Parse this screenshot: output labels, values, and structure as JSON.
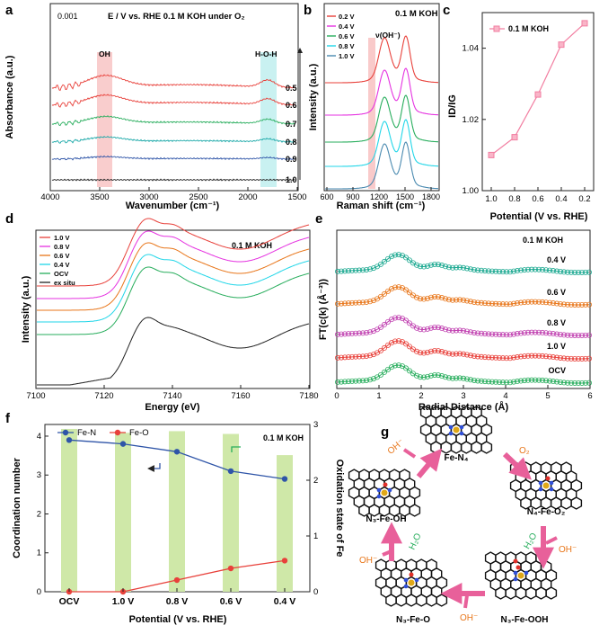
{
  "colors": {
    "red": "#e8403a",
    "magenta": "#e532e0",
    "orange": "#e8761a",
    "green": "#27ad5c",
    "blue": "#2f55a8",
    "teal": "#1aa8a8",
    "cyan": "#21d6e8",
    "pink": "#f27ea1",
    "black": "#222222",
    "lightgreen": "#cfe8a8"
  },
  "panel_a": {
    "label": "a",
    "note_left": "0.001",
    "note": "E / V vs. RHE  0.1 M KOH  under O₂",
    "xlabel": "Wavenumber (cm⁻¹)",
    "ylabel": "Absorbance (a.u.)",
    "band_oh": "OH",
    "band_hoh": "H-O-H",
    "xticks": [
      "4000",
      "3500",
      "3000",
      "2500",
      "2000",
      "1500"
    ],
    "potentials": [
      "0.5",
      "0.6",
      "0.7",
      "0.8",
      "0.9",
      "1.0"
    ]
  },
  "panel_b": {
    "label": "b",
    "note": "0.1 M KOH",
    "peak_label": "ν(OH⁻)",
    "xlabel": "Raman shift (cm⁻¹)",
    "ylabel": "Intensity (a.u.)",
    "xticks": [
      "600",
      "900",
      "1200",
      "1500",
      "1800"
    ],
    "legend": [
      "0.2 V",
      "0.4 V",
      "0.6 V",
      "0.8 V",
      "1.0 V"
    ]
  },
  "panel_c": {
    "label": "c",
    "legend": "0.1 M KOH",
    "ylabel": "ID/IG",
    "xlabel": "Potential (V vs. RHE)",
    "yticks": [
      "1.00",
      "1.02",
      "1.04"
    ],
    "xticks": [
      "1.0",
      "0.8",
      "0.6",
      "0.4",
      "0.2"
    ]
  },
  "panel_d": {
    "label": "d",
    "note": "0.1 M KOH",
    "xlabel": "Energy (eV)",
    "ylabel": "Intensity (a.u.)",
    "xticks": [
      "7100",
      "7120",
      "7140",
      "7160",
      "7180"
    ],
    "legend": [
      "1.0 V",
      "0.8 V",
      "0.6 V",
      "0.4 V",
      "OCV",
      "ex situ"
    ]
  },
  "panel_e": {
    "label": "e",
    "note": "0.1 M KOH",
    "xlabel": "Radial Distance (Å)",
    "ylabel": "FT(c(k) (Å⁻³))",
    "xticks": [
      "0",
      "1",
      "2",
      "3",
      "4",
      "5",
      "6"
    ],
    "curves": [
      "0.4 V",
      "0.6 V",
      "0.8 V",
      "1.0 V",
      "OCV"
    ]
  },
  "panel_f": {
    "label": "f",
    "note": "0.1 M KOH",
    "legend": [
      "Fe-N",
      "Fe-O"
    ],
    "ylabel": "Coordination number",
    "y2label": "Oxidation state of Fe",
    "xlabel": "Potential (V vs. RHE)",
    "yticks": [
      "0",
      "1",
      "2",
      "3",
      "4"
    ],
    "y2ticks": [
      "0",
      "1",
      "2",
      "3"
    ]
  },
  "panel_g": {
    "label": "g",
    "species": [
      "Fe-N₄",
      "N₄-Fe-O₂",
      "N₃-Fe-OOH",
      "N₃-Fe-O",
      "N₃-Fe-OH"
    ],
    "steps": [
      "O₂",
      "H₂O",
      "OH⁻",
      "OH⁻",
      "OH⁻",
      "H₂O",
      "OH⁻"
    ]
  },
  "chart_data": [
    {
      "panel": "a",
      "type": "line",
      "title": "E / V vs. RHE  0.1 M KOH  under O2",
      "xlabel": "Wavenumber (cm-1)",
      "ylabel": "Absorbance (a.u.)",
      "xlim": [
        4000,
        1500
      ],
      "series": [
        {
          "name": "0.5 V"
        },
        {
          "name": "0.6 V"
        },
        {
          "name": "0.7 V"
        },
        {
          "name": "0.8 V"
        },
        {
          "name": "0.9 V"
        },
        {
          "name": "1.0 V"
        }
      ],
      "annotations": [
        "OH band ~3400",
        "H-O-H band ~1650"
      ]
    },
    {
      "panel": "b",
      "type": "line",
      "xlabel": "Raman shift (cm-1)",
      "ylabel": "Intensity (a.u.)",
      "xlim": [
        600,
        1900
      ],
      "peaks_cm": [
        1350,
        1590
      ],
      "series": [
        {
          "name": "0.2 V"
        },
        {
          "name": "0.4 V"
        },
        {
          "name": "0.6 V"
        },
        {
          "name": "0.8 V"
        },
        {
          "name": "1.0 V"
        }
      ]
    },
    {
      "panel": "c",
      "type": "line",
      "xlabel": "Potential (V vs. RHE)",
      "ylabel": "ID/IG",
      "categories": [
        "1.0",
        "0.8",
        "0.6",
        "0.4",
        "0.2"
      ],
      "values": [
        1.01,
        1.015,
        1.027,
        1.041,
        1.047
      ],
      "ylim": [
        1.0,
        1.05
      ],
      "legend": "0.1 M KOH"
    },
    {
      "panel": "d",
      "type": "line",
      "xlabel": "Energy (eV)",
      "ylabel": "Intensity (a.u.)",
      "xlim": [
        7100,
        7180
      ],
      "series": [
        {
          "name": "1.0 V"
        },
        {
          "name": "0.8 V"
        },
        {
          "name": "0.6 V"
        },
        {
          "name": "0.4 V"
        },
        {
          "name": "OCV"
        },
        {
          "name": "ex situ"
        }
      ]
    },
    {
      "panel": "e",
      "type": "line",
      "xlabel": "Radial Distance (Å)",
      "ylabel": "FT(c(k)) (Å-3)",
      "xlim": [
        0,
        6
      ],
      "series": [
        {
          "name": "0.4 V"
        },
        {
          "name": "0.6 V"
        },
        {
          "name": "0.8 V"
        },
        {
          "name": "1.0 V"
        },
        {
          "name": "OCV"
        }
      ]
    },
    {
      "panel": "f",
      "type": "bar+line",
      "xlabel": "Potential (V vs. RHE)",
      "categories": [
        "OCV",
        "1.0 V",
        "0.8 V",
        "0.6 V",
        "0.4 V"
      ],
      "series": [
        {
          "name": "Fe-N",
          "axis": "left",
          "values": [
            3.9,
            3.8,
            3.6,
            3.1,
            2.9
          ]
        },
        {
          "name": "Fe-O",
          "axis": "left",
          "values": [
            0.0,
            0.0,
            0.3,
            0.6,
            0.8
          ]
        },
        {
          "name": "Oxidation state of Fe",
          "axis": "right",
          "type": "bar",
          "values": [
            2.92,
            2.85,
            2.88,
            2.83,
            2.45
          ]
        }
      ],
      "ylim": [
        0,
        4.3
      ],
      "y2lim": [
        0,
        3.0
      ]
    }
  ]
}
